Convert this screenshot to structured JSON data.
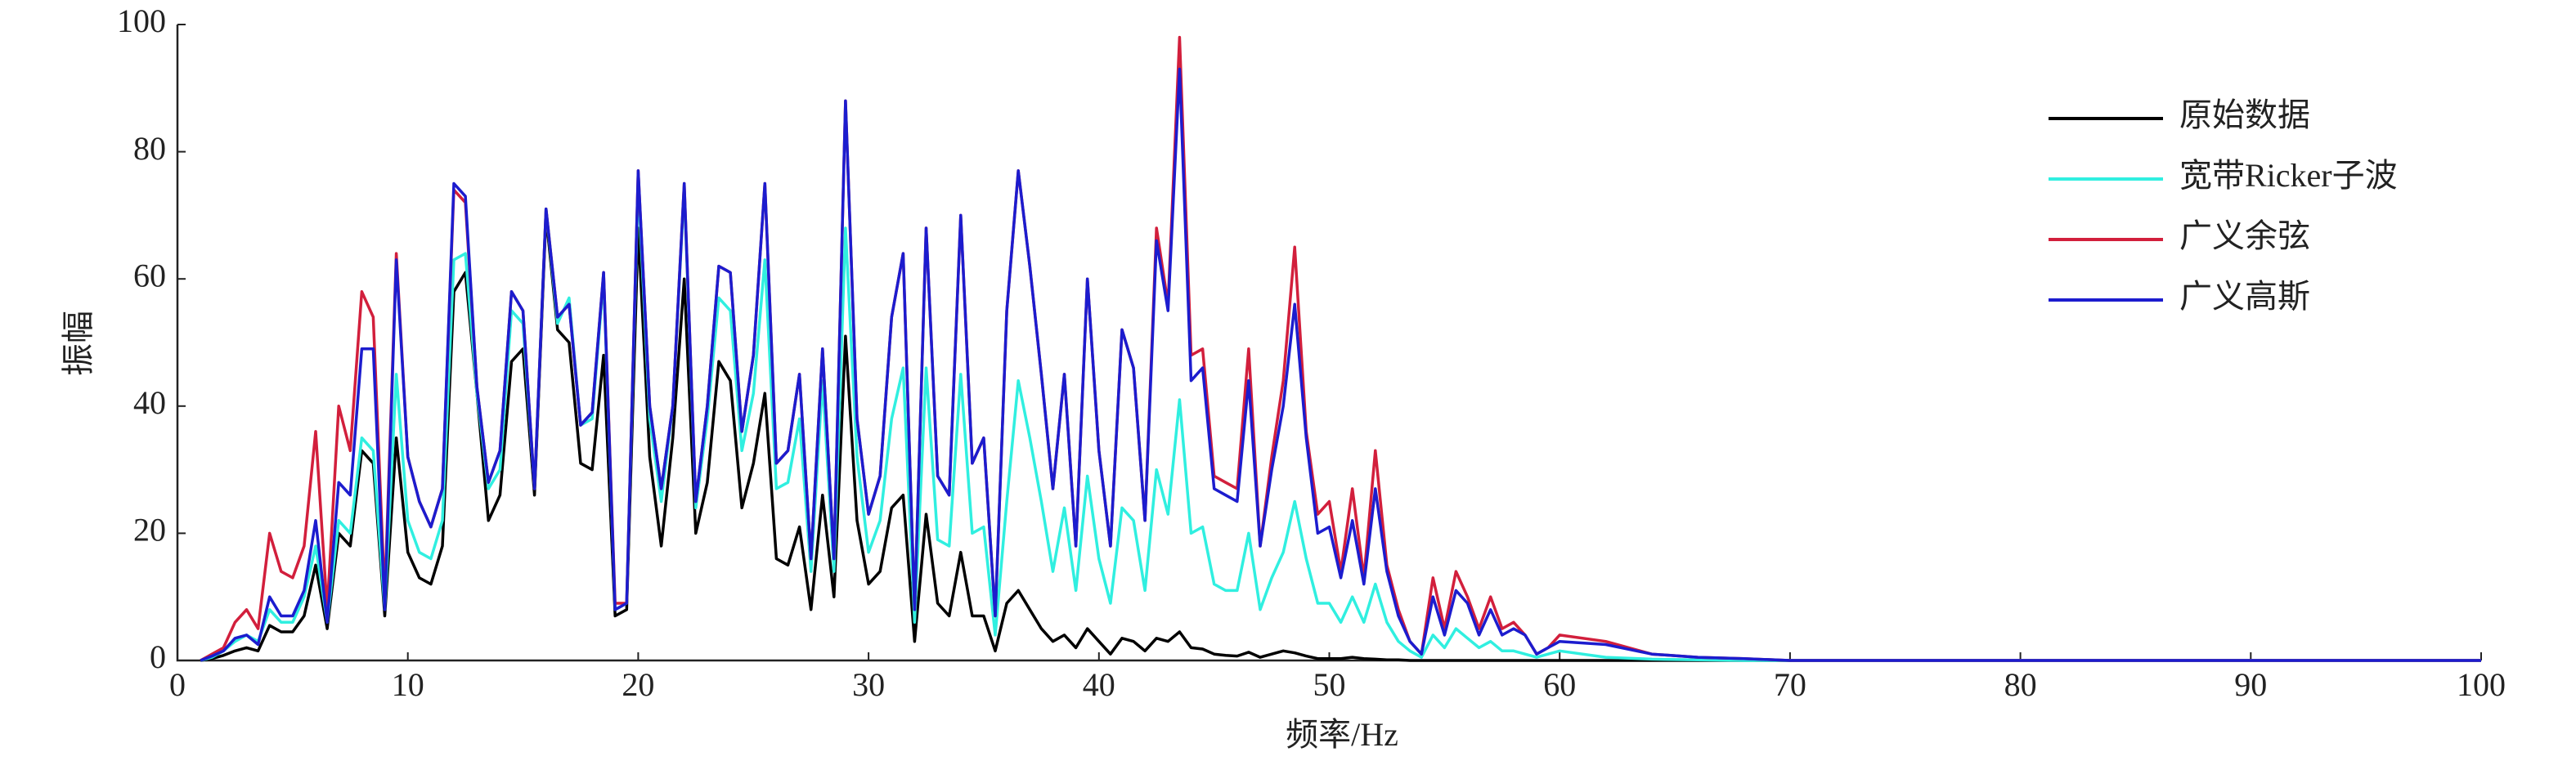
{
  "chart_data": {
    "type": "line",
    "xlabel": "频率/Hz",
    "ylabel": "振幅",
    "x": [
      1,
      1.5,
      2,
      2.5,
      3,
      3.5,
      4,
      4.5,
      5,
      5.5,
      6,
      6.5,
      7,
      7.5,
      8,
      8.5,
      9,
      9.5,
      10,
      10.5,
      11,
      11.5,
      12,
      12.5,
      13,
      13.5,
      14,
      14.5,
      15,
      15.5,
      16,
      16.5,
      17,
      17.5,
      18,
      18.5,
      19,
      19.5,
      20,
      20.5,
      21,
      21.5,
      22,
      22.5,
      23,
      23.5,
      24,
      24.5,
      25,
      25.5,
      26,
      26.5,
      27,
      27.5,
      28,
      28.5,
      29,
      29.5,
      30,
      30.5,
      31,
      31.5,
      32,
      32.5,
      33,
      33.5,
      34,
      34.5,
      35,
      35.5,
      36,
      36.5,
      37,
      37.5,
      38,
      38.5,
      39,
      39.5,
      40,
      40.5,
      41,
      41.5,
      42,
      42.5,
      43,
      43.5,
      44,
      44.5,
      45,
      45.5,
      46,
      46.5,
      47,
      47.5,
      48,
      48.5,
      49,
      49.5,
      50,
      50.5,
      51,
      51.5,
      52,
      52.5,
      53,
      53.5,
      54,
      54.5,
      55,
      55.5,
      56,
      56.5,
      57,
      57.5,
      58,
      58.5,
      59,
      59.5,
      60,
      62,
      64,
      66,
      68,
      70,
      75,
      80,
      85,
      90,
      95,
      100
    ],
    "series": [
      {
        "name": "原始数据",
        "color": "#000000",
        "values": [
          0,
          0.3,
          0.8,
          1.5,
          2,
          1.5,
          5.5,
          4.5,
          4.5,
          7,
          15,
          5,
          20,
          18,
          33,
          31,
          7,
          35,
          17,
          13,
          12,
          18,
          58,
          61,
          42,
          22,
          26,
          47,
          49,
          26,
          70,
          52,
          50,
          31,
          30,
          48,
          7,
          8,
          68,
          32,
          18,
          35,
          60,
          20,
          28,
          47,
          44,
          24,
          31,
          42,
          16,
          15,
          21,
          8,
          26,
          10,
          51,
          22,
          12,
          14,
          24,
          26,
          3,
          23,
          9,
          7,
          17,
          7,
          7,
          1.5,
          9,
          11,
          8,
          5,
          3,
          4,
          2,
          5,
          3,
          1,
          3.5,
          3,
          1.5,
          3.5,
          3,
          4.5,
          2,
          1.8,
          1,
          0.8,
          0.7,
          1.3,
          0.5,
          1,
          1.5,
          1.2,
          0.7,
          0.3,
          0.3,
          0.3,
          0.5,
          0.3,
          0.2,
          0.1,
          0.1,
          0,
          0,
          0,
          0,
          0,
          0,
          0,
          0,
          0,
          0,
          0,
          0,
          0,
          0,
          0,
          0,
          0,
          0,
          0,
          0,
          0,
          0,
          0,
          0,
          0
        ]
      },
      {
        "name": "宽带Ricker子波",
        "color": "#30efe0",
        "values": [
          0,
          0.5,
          1.5,
          3,
          4,
          3,
          8,
          6,
          6,
          10,
          18,
          6,
          22,
          20,
          35,
          33,
          8,
          45,
          22,
          17,
          16,
          22,
          63,
          64,
          42,
          27,
          30,
          55,
          53,
          27,
          71,
          53,
          57,
          37,
          38,
          60,
          8,
          9,
          75,
          38,
          25,
          40,
          74,
          24,
          38,
          57,
          55,
          33,
          42,
          63,
          27,
          28,
          38,
          14,
          44,
          14,
          68,
          32,
          17,
          22,
          38,
          46,
          6,
          46,
          19,
          18,
          45,
          20,
          21,
          4,
          25,
          44,
          35,
          25,
          14,
          24,
          11,
          29,
          16,
          9,
          24,
          22,
          11,
          30,
          23,
          41,
          20,
          21,
          12,
          11,
          11,
          20,
          8,
          13,
          17,
          25,
          16,
          9,
          9,
          6,
          10,
          6,
          12,
          6,
          3,
          1.5,
          0.5,
          4,
          2,
          5,
          3.5,
          2,
          3,
          1.5,
          1.5,
          1,
          0.5,
          1,
          1.5,
          0.5,
          0.2,
          0.1,
          0,
          0,
          0,
          0,
          0,
          0,
          0,
          0
        ]
      },
      {
        "name": "广义余弦",
        "color": "#d21f3c",
        "values": [
          0,
          1,
          2,
          6,
          8,
          5,
          20,
          14,
          13,
          18,
          36,
          8,
          40,
          33,
          58,
          54,
          10,
          64,
          32,
          25,
          21,
          27,
          74,
          72,
          43,
          28,
          33,
          58,
          55,
          27,
          71,
          54,
          56,
          37,
          39,
          61,
          9,
          9,
          77,
          40,
          27,
          40,
          75,
          25,
          40,
          62,
          61,
          36,
          48,
          75,
          31,
          33,
          45,
          16,
          49,
          16,
          88,
          38,
          23,
          29,
          54,
          64,
          8,
          68,
          29,
          26,
          70,
          31,
          35,
          7,
          55,
          77,
          62,
          45,
          27,
          45,
          18,
          60,
          33,
          18,
          52,
          46,
          22,
          68,
          56,
          98,
          48,
          49,
          29,
          28,
          27,
          49,
          18,
          32,
          44,
          65,
          36,
          23,
          25,
          14,
          27,
          13,
          33,
          15,
          8,
          3,
          1,
          13,
          5,
          14,
          10,
          5,
          10,
          5,
          6,
          4,
          1,
          2,
          4,
          3,
          1,
          0.5,
          0.3,
          0,
          0,
          0,
          0,
          0,
          0,
          0
        ]
      },
      {
        "name": "广义高斯",
        "color": "#1c1cce",
        "values": [
          0,
          0.7,
          1.5,
          3.5,
          4,
          2.5,
          10,
          7,
          7,
          11,
          22,
          6,
          28,
          26,
          49,
          49,
          8,
          63,
          32,
          25,
          21,
          27,
          75,
          73,
          43,
          28,
          33,
          58,
          55,
          27,
          71,
          54,
          56,
          37,
          39,
          61,
          8,
          9,
          77,
          40,
          27,
          40,
          75,
          25,
          40,
          62,
          61,
          36,
          48,
          75,
          31,
          33,
          45,
          16,
          49,
          16,
          88,
          38,
          23,
          29,
          54,
          64,
          8,
          68,
          29,
          26,
          70,
          31,
          35,
          7,
          55,
          77,
          62,
          45,
          27,
          45,
          18,
          60,
          33,
          18,
          52,
          46,
          22,
          66,
          55,
          93,
          44,
          46,
          27,
          26,
          25,
          44,
          18,
          30,
          40,
          56,
          35,
          20,
          21,
          13,
          22,
          12,
          27,
          14,
          7,
          3,
          1,
          10,
          4,
          11,
          9,
          4,
          8,
          4,
          5,
          4,
          1,
          2,
          3,
          2.5,
          1,
          0.5,
          0.3,
          0,
          0,
          0,
          0,
          0,
          0,
          0
        ]
      }
    ],
    "xlim": [
      0,
      100
    ],
    "xticks": [
      0,
      10,
      20,
      30,
      40,
      50,
      60,
      70,
      80,
      90,
      100
    ],
    "ylim": [
      0,
      100
    ],
    "yticks": [
      0,
      20,
      40,
      60,
      80,
      100
    ],
    "legend": "upper right"
  }
}
